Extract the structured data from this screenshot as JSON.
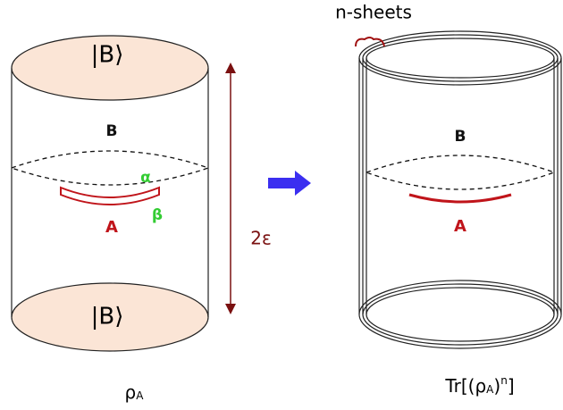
{
  "left": {
    "top_cap": "|B⟩",
    "bottom_cap": "|B⟩",
    "slice_label": "B",
    "interval_label": "A",
    "alpha": "α",
    "beta": "β",
    "height_label": "2ε",
    "caption": [
      "ρ",
      "A"
    ]
  },
  "right": {
    "sheets_label": "n-sheets",
    "slice_label": "B",
    "interval_label": "A",
    "caption": [
      "Tr[(ρ",
      "A",
      ")",
      "n",
      "]"
    ]
  }
}
